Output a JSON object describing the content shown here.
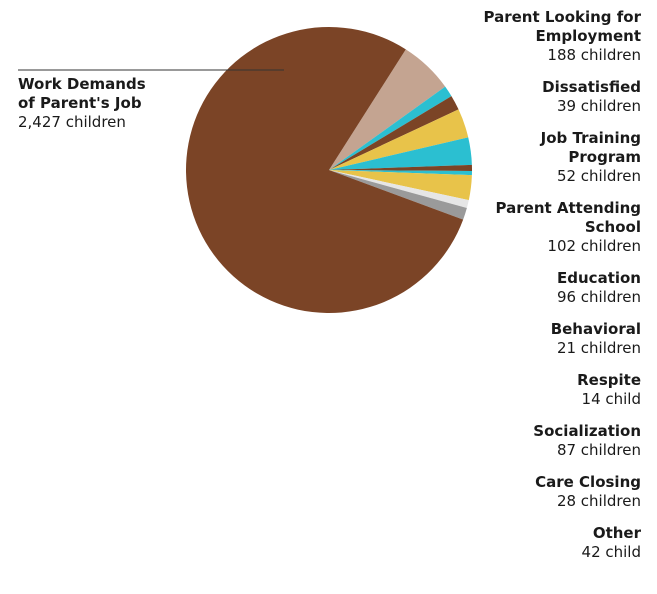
{
  "chart_data": {
    "type": "pie",
    "title": "",
    "slices": [
      {
        "label": "Work Demands\nof Parent's Job",
        "value": 2427,
        "display": "2,427 children",
        "color": "#7b4426"
      },
      {
        "label": "Parent Looking for\nEmployment",
        "value": 188,
        "display": "188 children",
        "color": "#c4a491"
      },
      {
        "label": "Dissatisfied",
        "value": 39,
        "display": "39 children",
        "color": "#2bbfd1"
      },
      {
        "label": "Job Training\nProgram",
        "value": 52,
        "display": "52 children",
        "color": "#7b4426"
      },
      {
        "label": "Parent Attending\nSchool",
        "value": 102,
        "display": "102 children",
        "color": "#e8c34a"
      },
      {
        "label": "Education",
        "value": 96,
        "display": "96 children",
        "color": "#2bbfd1"
      },
      {
        "label": "Behavioral",
        "value": 21,
        "display": "21 children",
        "color": "#7b4426"
      },
      {
        "label": "Respite",
        "value": 14,
        "display": "14 child",
        "color": "#2bbfd1"
      },
      {
        "label": "Socialization",
        "value": 87,
        "display": "87 children",
        "color": "#e8c34a"
      },
      {
        "label": "Care Closing",
        "value": 28,
        "display": "28 children",
        "color": "#e6e6e6"
      },
      {
        "label": "Other",
        "value": 42,
        "display": "42 child",
        "color": "#9a9a9a"
      }
    ]
  }
}
